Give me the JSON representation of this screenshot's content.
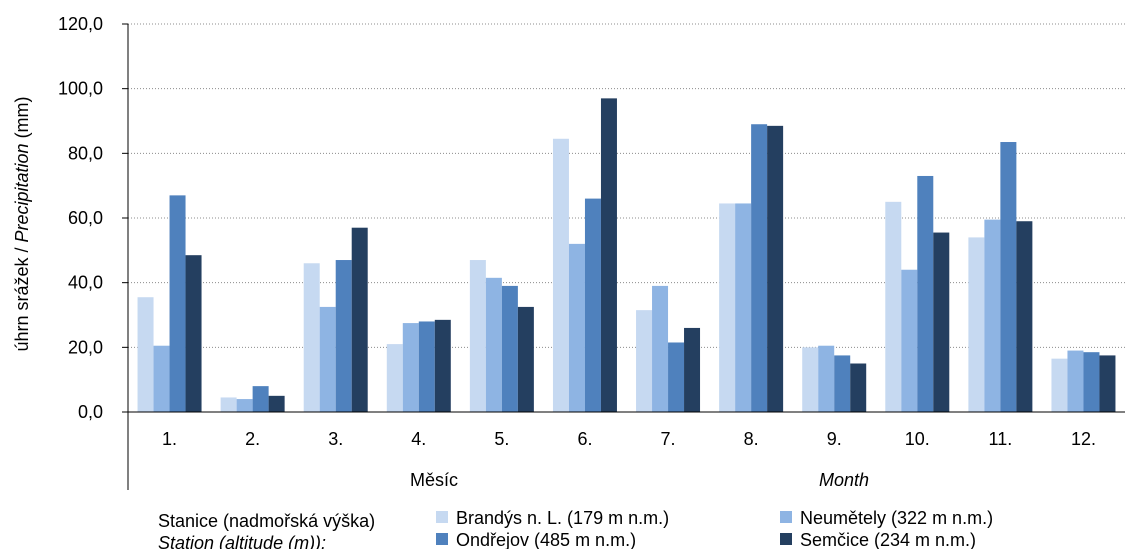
{
  "chart_data": {
    "type": "bar",
    "categories": [
      "1.",
      "2.",
      "3.",
      "4.",
      "5.",
      "6.",
      "7.",
      "8.",
      "9.",
      "10.",
      "11.",
      "12."
    ],
    "series": [
      {
        "name": "Brandýs n. L. (179 m n.m.)",
        "color": "#c6d9f1",
        "values": [
          35.5,
          4.5,
          46.0,
          21.0,
          47.0,
          84.5,
          31.5,
          64.5,
          20.0,
          65.0,
          54.0,
          16.5
        ]
      },
      {
        "name": "Neumětely (322 m n.m.)",
        "color": "#8eb4e3",
        "values": [
          20.5,
          4.0,
          32.5,
          27.5,
          41.5,
          52.0,
          39.0,
          64.5,
          20.5,
          44.0,
          59.5,
          19.0
        ]
      },
      {
        "name": "Ondřejov (485 m n.m.)",
        "color": "#4f81bd",
        "values": [
          67.0,
          8.0,
          47.0,
          28.0,
          39.0,
          66.0,
          21.5,
          89.0,
          17.5,
          73.0,
          83.5,
          18.5
        ]
      },
      {
        "name": "Semčice (234 m n.m.)",
        "color": "#243f60",
        "values": [
          48.5,
          5.0,
          57.0,
          28.5,
          32.5,
          97.0,
          26.0,
          88.5,
          15.0,
          55.5,
          59.0,
          17.5
        ]
      }
    ],
    "ylim": [
      0,
      120
    ],
    "yticks": [
      "0,0",
      "20,0",
      "40,0",
      "60,0",
      "80,0",
      "100,0",
      "120,0"
    ],
    "ylabel_plain": "úhrn srážek / ",
    "ylabel_italic": "Precipitation",
    "ylabel_unit": " (mm)",
    "xlabel_cs": "Měsíc",
    "xlabel_en": "Month",
    "legend_title_cs": "Stanice (nadmořská výška)",
    "legend_title_en": "Station (altitude (m)):",
    "grid": true,
    "legend_position": "bottom"
  }
}
